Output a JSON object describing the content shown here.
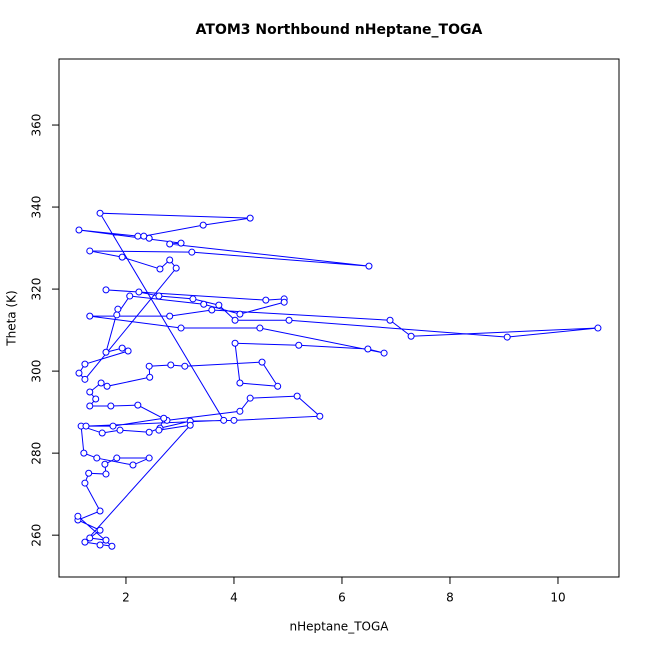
{
  "chart_data": {
    "type": "line",
    "markers": true,
    "title": "ATOM3 Northbound nHeptane_TOGA",
    "x_label": "nHeptane_TOGA",
    "y_label": "Theta (K)",
    "color": "#0000ff",
    "x": [
      1.52,
      1.63,
      1.33,
      1.52,
      1.11,
      1.52,
      1.24,
      1.31,
      1.63,
      1.61,
      1.83,
      2.43,
      2.13,
      1.46,
      1.22,
      1.17,
      1.56,
      1.89,
      2.43,
      2.63,
      3.19,
      4.0,
      5.59,
      5.17,
      4.3,
      4.11,
      2.76,
      2.22,
      1.72,
      1.33,
      1.44,
      1.33,
      1.54,
      1.65,
      2.44,
      2.43,
      2.83,
      3.09,
      4.52,
      4.81,
      4.11,
      4.02,
      5.2,
      6.48,
      6.78,
      4.48,
      3.02,
      1.33,
      2.81,
      3.59,
      6.89,
      7.28,
      10.74,
      9.06,
      5.02,
      4.02,
      3.72,
      3.24,
      2.61,
      2.24,
      1.63,
      4.59,
      4.93,
      4.93,
      4.11,
      3.44,
      2.07,
      1.83,
      1.85,
      1.63,
      1.93,
      2.04,
      1.24,
      1.13,
      1.24,
      2.93,
      2.81,
      2.63,
      1.93,
      1.33,
      3.22,
      6.5,
      2.81,
      3.02,
      1.13,
      2.22,
      2.43,
      2.33,
      3.43,
      4.3,
      1.52,
      3.81,
      1.26,
      1.76,
      2.7,
      2.61,
      3.19,
      1.24,
      1.74,
      1.11
    ],
    "values": [
      257.6,
      258.8,
      259.3,
      261.2,
      263.7,
      265.9,
      272.7,
      275.1,
      274.9,
      277.3,
      278.8,
      278.8,
      277.1,
      278.8,
      280.0,
      286.6,
      284.9,
      285.6,
      285.1,
      286.1,
      287.8,
      288.0,
      289.0,
      293.9,
      293.4,
      290.2,
      288.0,
      291.7,
      291.5,
      291.5,
      293.2,
      294.9,
      297.1,
      296.3,
      298.5,
      301.2,
      301.5,
      301.2,
      302.2,
      296.3,
      297.1,
      306.8,
      306.3,
      305.4,
      304.4,
      310.5,
      310.5,
      313.4,
      313.4,
      314.9,
      312.4,
      308.5,
      310.5,
      308.3,
      312.4,
      312.4,
      316.1,
      317.6,
      318.3,
      319.3,
      319.8,
      317.3,
      317.6,
      316.8,
      313.9,
      316.3,
      318.3,
      313.7,
      315.1,
      304.6,
      305.6,
      304.9,
      301.7,
      299.5,
      298.0,
      325.1,
      327.1,
      324.9,
      327.8,
      329.3,
      329.0,
      325.6,
      331.0,
      331.2,
      334.4,
      332.9,
      332.4,
      332.9,
      335.6,
      337.3,
      338.5,
      288.0,
      286.6,
      286.6,
      288.5,
      285.6,
      286.8,
      258.3,
      257.3,
      264.6
    ],
    "xlim": [
      0.76,
      11.13
    ],
    "ylim": [
      249.8,
      376.1
    ],
    "xticks": [
      2,
      4,
      6,
      8,
      10
    ],
    "yticks": [
      260,
      280,
      300,
      320,
      340,
      360
    ]
  }
}
